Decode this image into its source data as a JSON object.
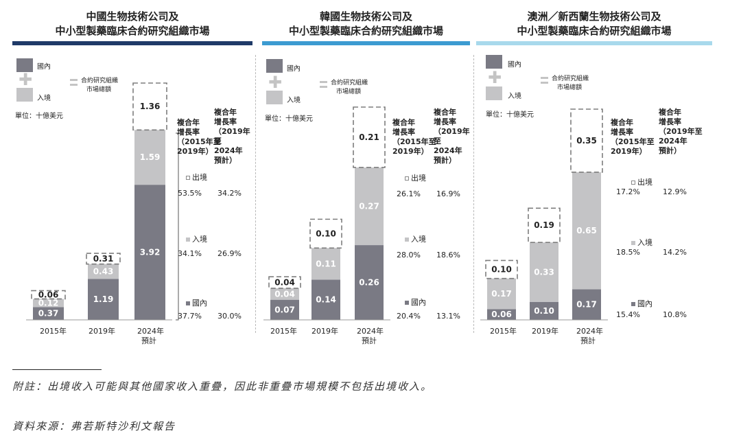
{
  "legend": {
    "domestic": "國內",
    "inbound": "入境",
    "total": "合約研究組織",
    "total2": "市場總額"
  },
  "unit": "單位：十億美元",
  "growth_headers": {
    "col1": [
      "複合年",
      "增長率",
      "（2015年至",
      "2019年）"
    ],
    "col2": [
      "複合年",
      "增長率",
      "（2019年至",
      "2024年",
      "預計）"
    ]
  },
  "categories_labels": {
    "outbound": "出境",
    "inbound": "入境",
    "domestic": "國內"
  },
  "colors": {
    "domestic": "#7a7a84",
    "inbound": "#c4c4c6",
    "outbound_border": "#7d7d7d",
    "bar_china": "#1f3a68",
    "bar_korea": "#3c9bd1",
    "bar_aus": "#a8d9ec"
  },
  "panels": [
    {
      "title_line1": "中國生物技術公司及",
      "title_line2": "中小型製藥臨床合約研究組織市場",
      "x_labels": [
        "2015年",
        "2019年",
        "2024年",
        "預計"
      ],
      "growth": {
        "outbound": [
          "53.5%",
          "34.2%"
        ],
        "inbound": [
          "34.1%",
          "26.9%"
        ],
        "domestic": [
          "37.7%",
          "30.0%"
        ]
      }
    },
    {
      "title_line1": "韓國生物技術公司及",
      "title_line2": "中小型製藥臨床合約研究組織市場",
      "x_labels": [
        "2015年",
        "2019年",
        "2024年",
        "預計"
      ],
      "growth": {
        "outbound": [
          "26.1%",
          "16.9%"
        ],
        "inbound": [
          "28.0%",
          "18.6%"
        ],
        "domestic": [
          "20.4%",
          "13.1%"
        ]
      }
    },
    {
      "title_line1": "澳洲／新西蘭生物技術公司及",
      "title_line2": "中小型製藥臨床合約研究組織市場",
      "x_labels": [
        "2015年",
        "2019年",
        "2024年",
        "預計"
      ],
      "growth": {
        "outbound": [
          "17.2%",
          "12.9%"
        ],
        "inbound": [
          "18.5%",
          "14.2%"
        ],
        "domestic": [
          "15.4%",
          "10.8%"
        ]
      }
    }
  ],
  "chart_data": [
    {
      "type": "bar",
      "title": "中國生物技術公司及中小型製藥臨床合約研究組織市場",
      "categories": [
        "2015年",
        "2019年",
        "2024年預計"
      ],
      "series": [
        {
          "name": "國內",
          "values": [
            0.37,
            1.19,
            3.92
          ]
        },
        {
          "name": "入境",
          "values": [
            0.12,
            0.43,
            1.59
          ]
        },
        {
          "name": "出境",
          "values": [
            0.06,
            0.31,
            1.36
          ]
        }
      ],
      "label_values": [
        [
          "0.37",
          "0.12",
          "0.06"
        ],
        [
          "1.19",
          "0.43",
          "0.31"
        ],
        [
          "3.92",
          "1.59",
          "1.36"
        ]
      ],
      "ylim": [
        0,
        6.87
      ]
    },
    {
      "type": "bar",
      "title": "韓國生物技術公司及中小型製藥臨床合約研究組織市場",
      "categories": [
        "2015年",
        "2019年",
        "2024年預計"
      ],
      "series": [
        {
          "name": "國內",
          "values": [
            0.07,
            0.14,
            0.26
          ]
        },
        {
          "name": "入境",
          "values": [
            0.04,
            0.11,
            0.27
          ]
        },
        {
          "name": "出境",
          "values": [
            0.04,
            0.1,
            0.21
          ]
        }
      ],
      "label_values": [
        [
          "0.07",
          "0.04",
          "0.04"
        ],
        [
          "0.14",
          "0.11",
          "0.10"
        ],
        [
          "0.26",
          "0.27",
          "0.21"
        ]
      ],
      "ylim": [
        0,
        0.74
      ]
    },
    {
      "type": "bar",
      "title": "澳洲／新西蘭生物技術公司及中小型製藥臨床合約研究組織市場",
      "categories": [
        "2015年",
        "2019年",
        "2024年預計"
      ],
      "series": [
        {
          "name": "國內",
          "values": [
            0.06,
            0.1,
            0.17
          ]
        },
        {
          "name": "入境",
          "values": [
            0.17,
            0.33,
            0.65
          ]
        },
        {
          "name": "出境",
          "values": [
            0.1,
            0.19,
            0.35
          ]
        }
      ],
      "label_values": [
        [
          "0.06",
          "0.17",
          "0.10"
        ],
        [
          "0.10",
          "0.33",
          "0.19"
        ],
        [
          "0.17",
          "0.65",
          "0.35"
        ]
      ],
      "ylim": [
        0,
        1.17
      ]
    }
  ],
  "notes": {
    "note1": "附註：出境收入可能與其他國家收入重疊，因此非重疊市場規模不包括出境收入。",
    "note2": "資料來源：弗若斯特沙利文報告"
  }
}
